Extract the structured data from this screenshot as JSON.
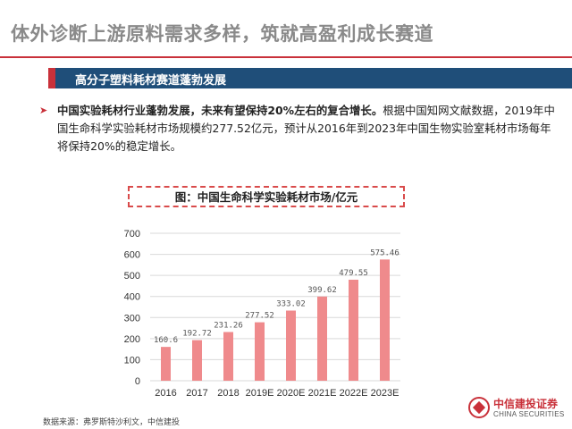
{
  "page": {
    "title": "体外诊断上游原料需求多样，筑就高盈利成长赛道",
    "section_title": "高分子塑料耗材赛道蓬勃发展",
    "bullet_lead": "中国实验耗材行业蓬勃发展，未来有望保持20%左右的复合增长。",
    "bullet_body": "根据中国知网文献数据，2019年中国生命科学实验耗材市场规模约277.52亿元，预计从2016年到2023年中国生物实验室耗材市场每年将保持20%的稳定增长。",
    "source": "数据来源：弗罗斯特沙利文，中信建投",
    "logo_cn": "中信建投证券",
    "logo_en": "CHINA SECURITIES"
  },
  "colors": {
    "accent_red": "#c9313a",
    "bar_fill": "#ef8a8c",
    "section_blue": "#1f4e79"
  },
  "chart_data": {
    "type": "bar",
    "title": "图：中国生命科学实验耗材市场/亿元",
    "categories": [
      "2016",
      "2017",
      "2018",
      "2019E",
      "2020E",
      "2021E",
      "2022E",
      "2023E"
    ],
    "values": [
      160.6,
      192.72,
      231.26,
      277.52,
      333.02,
      399.62,
      479.55,
      575.46
    ],
    "data_labels": [
      "160.6",
      "192.72",
      "231.26",
      "277.52",
      "333.02",
      "399.62",
      "479.55",
      "575.46"
    ],
    "y_ticks": [
      "0",
      "100",
      "200",
      "300",
      "400",
      "500",
      "600",
      "700"
    ],
    "ylim": [
      0,
      700
    ],
    "grid": "horizontal",
    "legend": "none"
  }
}
